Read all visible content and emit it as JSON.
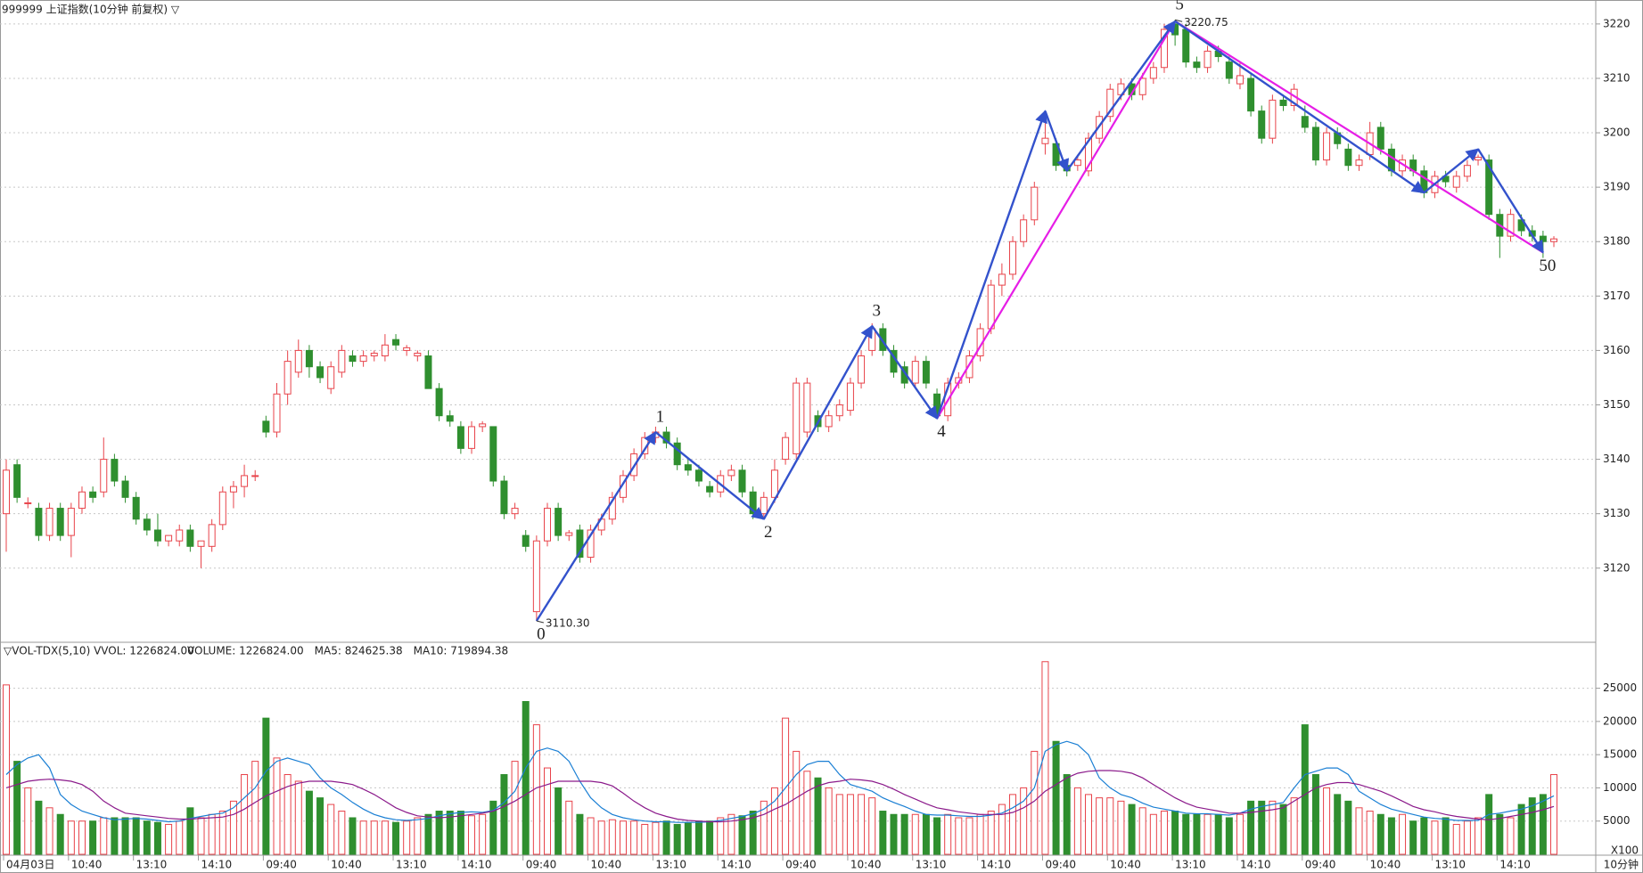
{
  "chart_data": {
    "type": "candlestick",
    "title": "999999 上证指数(10分钟 前复权) ▽",
    "up_color": "#e8434a",
    "down_color": "#2f8f2f",
    "ylim": [
      3106.7,
      3224.4
    ],
    "yticks": [
      3120,
      3130,
      3140,
      3150,
      3160,
      3170,
      3180,
      3190,
      3200,
      3210,
      3220
    ],
    "grid": true,
    "open": [
      3130,
      3139,
      3132,
      3131,
      3126,
      3131,
      3126,
      3131,
      3134,
      3134,
      3140,
      3136,
      3133,
      3129,
      3127,
      3125,
      3125,
      3127,
      3124,
      3124,
      3128,
      3134,
      3135,
      3137,
      3147,
      3145,
      3152,
      3156,
      3160,
      3157,
      3153,
      3156,
      3159,
      3158,
      3159,
      3159,
      3162,
      3160,
      3159,
      3159,
      3153,
      3148,
      3146,
      3142,
      3146,
      3146,
      3136,
      3130,
      3126,
      3112,
      3125,
      3131,
      3126,
      3127,
      3122,
      3127,
      3129,
      3133,
      3137,
      3141,
      3144,
      3145,
      3143,
      3139,
      3138,
      3135,
      3134,
      3137,
      3138,
      3134,
      3130,
      3133,
      3140,
      3141,
      3145,
      3148,
      3146,
      3148,
      3149,
      3154,
      3160,
      3164,
      3160,
      3157,
      3154,
      3158,
      3152,
      3148,
      3154,
      3155,
      3159,
      3164,
      3172,
      3174,
      3180,
      3184,
      3198,
      3198,
      3194,
      3194,
      3193,
      3199,
      3203,
      3207,
      3209,
      3207,
      3210,
      3212,
      3220,
      3219,
      3213,
      3212,
      3215,
      3213,
      3209,
      3210,
      3204,
      3199,
      3206,
      3205,
      3203,
      3201,
      3195,
      3200,
      3197,
      3194,
      3196,
      3201,
      3197,
      3193,
      3195,
      3193,
      3189,
      3192,
      3190,
      3192,
      3195,
      3195,
      3185,
      3181,
      3184,
      3182,
      3181,
      3180
    ],
    "high": [
      3140,
      3140,
      3133,
      3132,
      3132,
      3132,
      3132,
      3135,
      3135,
      3144,
      3141,
      3137,
      3134,
      3130,
      3130,
      3126,
      3128,
      3128,
      3125,
      3129,
      3135,
      3136,
      3139,
      3138,
      3148,
      3154,
      3160,
      3162,
      3161,
      3158,
      3158,
      3161,
      3160,
      3160,
      3160,
      3163,
      3163,
      3161,
      3160,
      3160,
      3154,
      3149,
      3147,
      3147,
      3147,
      3146,
      3137,
      3132,
      3127,
      3126,
      3132,
      3132,
      3127,
      3128,
      3128,
      3130,
      3134,
      3138,
      3142,
      3145,
      3146,
      3146,
      3144,
      3140,
      3139,
      3136,
      3138,
      3139,
      3139,
      3135,
      3134,
      3140,
      3145,
      3155,
      3155,
      3149,
      3149,
      3151,
      3155,
      3160,
      3165,
      3165,
      3161,
      3158,
      3159,
      3159,
      3153,
      3155,
      3156,
      3160,
      3165,
      3173,
      3176,
      3181,
      3185,
      3191,
      3204,
      3199,
      3195,
      3196,
      3200,
      3204,
      3209,
      3210,
      3210,
      3211,
      3213,
      3220,
      3220.75,
      3220,
      3214,
      3216,
      3216,
      3214,
      3213,
      3211,
      3205,
      3207,
      3207,
      3209,
      3205,
      3202,
      3201,
      3201,
      3198,
      3196,
      3202,
      3202,
      3198,
      3196,
      3196,
      3194,
      3193,
      3193,
      3193,
      3195,
      3196,
      3196,
      3186,
      3186,
      3185,
      3183,
      3182,
      3181
    ],
    "low": [
      3123,
      3132,
      3131,
      3125,
      3125,
      3125,
      3122,
      3130,
      3132,
      3133,
      3135,
      3132,
      3128,
      3126,
      3124,
      3124,
      3124,
      3123,
      3120,
      3123,
      3127,
      3131,
      3133,
      3136,
      3144,
      3144,
      3150,
      3155,
      3155,
      3154,
      3152,
      3155,
      3157,
      3157,
      3158,
      3158,
      3160,
      3159,
      3158,
      3153,
      3147,
      3146,
      3141,
      3141,
      3145,
      3135,
      3129,
      3129,
      3123,
      3110.3,
      3124,
      3125,
      3125,
      3121,
      3121,
      3126,
      3128,
      3132,
      3136,
      3140,
      3143,
      3142,
      3138,
      3137,
      3135,
      3133,
      3133,
      3136,
      3133,
      3129,
      3129,
      3132,
      3139,
      3140,
      3144,
      3145,
      3145,
      3147,
      3148,
      3153,
      3159,
      3159,
      3155,
      3153,
      3153,
      3153,
      3147.5,
      3147,
      3153,
      3154,
      3158,
      3163,
      3170,
      3173,
      3179,
      3183,
      3196,
      3193,
      3192,
      3193,
      3192,
      3198,
      3202,
      3206,
      3206,
      3206,
      3209,
      3211,
      3216,
      3212,
      3211,
      3211,
      3213,
      3209,
      3208,
      3203,
      3198,
      3198,
      3204,
      3204,
      3200,
      3194,
      3194,
      3197,
      3193,
      3193,
      3195,
      3196,
      3192,
      3192,
      3192,
      3188,
      3188,
      3190,
      3189,
      3191,
      3194,
      3184,
      3177,
      3180,
      3181,
      3180,
      3177,
      3179
    ],
    "close": [
      3138,
      3133,
      3132,
      3126,
      3131,
      3126,
      3131,
      3134,
      3133,
      3140,
      3136,
      3133,
      3129,
      3127,
      3125,
      3126,
      3127,
      3124,
      3125,
      3128,
      3134,
      3135,
      3137,
      3137,
      3145,
      3152,
      3158,
      3160,
      3157,
      3155,
      3157,
      3160,
      3158,
      3159,
      3159.5,
      3161,
      3161,
      3160.5,
      3159.5,
      3153,
      3148,
      3147,
      3142,
      3146,
      3146.5,
      3136,
      3130,
      3131,
      3124,
      3125,
      3131,
      3126,
      3126.5,
      3122,
      3127,
      3129,
      3133,
      3137,
      3141,
      3144,
      3145,
      3143,
      3139,
      3138,
      3136,
      3134,
      3137,
      3138,
      3134,
      3130,
      3133,
      3138,
      3144,
      3154,
      3154,
      3146,
      3148,
      3150,
      3154,
      3159,
      3164,
      3160,
      3156,
      3154,
      3158,
      3154,
      3148,
      3154,
      3155,
      3159,
      3164,
      3172,
      3174,
      3180,
      3184,
      3190,
      3199,
      3194,
      3193,
      3195,
      3199,
      3203,
      3208,
      3209,
      3207,
      3210,
      3212,
      3219,
      3218,
      3213,
      3212,
      3215,
      3214,
      3210,
      3210.5,
      3204,
      3199,
      3206,
      3205,
      3208,
      3201,
      3195,
      3200,
      3198,
      3194,
      3195,
      3200,
      3197,
      3193,
      3195,
      3193,
      3189,
      3192,
      3191,
      3192,
      3194,
      3195.5,
      3185,
      3181,
      3185,
      3182,
      3181,
      3180,
      3180.5
    ],
    "xlabels": [
      {
        "bar": 0,
        "label": "04月03日"
      },
      {
        "bar": 6,
        "label": "10:40"
      },
      {
        "bar": 12,
        "label": "13:10"
      },
      {
        "bar": 18,
        "label": "14:10"
      },
      {
        "bar": 24,
        "label": "09:40"
      },
      {
        "bar": 30,
        "label": "10:40"
      },
      {
        "bar": 36,
        "label": "13:10"
      },
      {
        "bar": 42,
        "label": "14:10"
      },
      {
        "bar": 48,
        "label": "09:40"
      },
      {
        "bar": 54,
        "label": "10:40"
      },
      {
        "bar": 60,
        "label": "13:10"
      },
      {
        "bar": 66,
        "label": "14:10"
      },
      {
        "bar": 72,
        "label": "09:40"
      },
      {
        "bar": 78,
        "label": "10:40"
      },
      {
        "bar": 84,
        "label": "13:10"
      },
      {
        "bar": 90,
        "label": "14:10"
      },
      {
        "bar": 96,
        "label": "09:40"
      },
      {
        "bar": 102,
        "label": "10:40"
      },
      {
        "bar": 108,
        "label": "13:10"
      },
      {
        "bar": 114,
        "label": "14:10"
      },
      {
        "bar": 120,
        "label": "09:40"
      },
      {
        "bar": 126,
        "label": "10:40"
      },
      {
        "bar": 132,
        "label": "13:10"
      },
      {
        "bar": 138,
        "label": "14:10"
      }
    ],
    "period_label": "10分钟",
    "price_marks": [
      {
        "bar": 49,
        "value": 3110.3,
        "label": "3110.30"
      },
      {
        "bar": 108,
        "value": 3220.75,
        "label": "3220.75"
      }
    ],
    "wave_color": "#3352cc",
    "trend_color": "#e61ee6",
    "wave_path": [
      {
        "bar": 49,
        "price": 3110.3
      },
      {
        "bar": 60,
        "price": 3145
      },
      {
        "bar": 70,
        "price": 3129
      },
      {
        "bar": 80,
        "price": 3164.5
      },
      {
        "bar": 86,
        "price": 3147.5
      },
      {
        "bar": 96,
        "price": 3204
      },
      {
        "bar": 98,
        "price": 3193
      },
      {
        "bar": 108,
        "price": 3220.5
      },
      {
        "bar": 131,
        "price": 3189
      },
      {
        "bar": 136,
        "price": 3197
      },
      {
        "bar": 142,
        "price": 3178
      }
    ],
    "trend_path": [
      {
        "bar": 86,
        "price": 3147.5
      },
      {
        "bar": 108,
        "price": 3220.5
      },
      {
        "bar": 142,
        "price": 3178
      }
    ],
    "wave_labels": [
      {
        "label": "0",
        "bar": 49,
        "price": 3110.3,
        "side": "below"
      },
      {
        "label": "1",
        "bar": 60,
        "price": 3145,
        "side": "above"
      },
      {
        "label": "2",
        "bar": 70,
        "price": 3129,
        "side": "below"
      },
      {
        "label": "3",
        "bar": 80,
        "price": 3164.5,
        "side": "above"
      },
      {
        "label": "4",
        "bar": 86,
        "price": 3147.5,
        "side": "below"
      },
      {
        "label": "5",
        "bar": 108,
        "price": 3220.75,
        "side": "above"
      },
      {
        "label": "50",
        "bar": 142,
        "price": 3178,
        "side": "below"
      }
    ],
    "volume_header": "▽VOL-TDX(5,10) VVOL: 1226824.00",
    "volume_legend": [
      {
        "text": "VOLUME: 1226824.00",
        "color": "#1a7fd4"
      },
      {
        "text": "MA5: 824625.38",
        "color": "#1a7fd4"
      },
      {
        "text": "MA10: 719894.38",
        "color": "#8b1a8b"
      }
    ],
    "volume_unit": "X100",
    "vlim": [
      0,
      31650
    ],
    "vticks": [
      5000,
      10000,
      15000,
      20000,
      25000
    ],
    "volume": [
      25500,
      14000,
      10000,
      8000,
      7000,
      6000,
      5000,
      5000,
      5000,
      5500,
      5500,
      5500,
      5500,
      5000,
      4800,
      4500,
      5000,
      7000,
      5500,
      6000,
      6500,
      8000,
      12000,
      14000,
      20500,
      14500,
      12000,
      11000,
      9500,
      8500,
      7500,
      6500,
      5500,
      5000,
      5000,
      5000,
      4800,
      5000,
      5500,
      6000,
      6500,
      6500,
      6500,
      5800,
      6000,
      8000,
      12000,
      14000,
      23000,
      19500,
      13000,
      10000,
      8000,
      6000,
      5500,
      5000,
      5200,
      5000,
      5000,
      4500,
      4800,
      5000,
      4500,
      4700,
      5000,
      5000,
      5500,
      6000,
      5800,
      6500,
      8000,
      10000,
      20500,
      15500,
      12500,
      11500,
      10000,
      9000,
      9000,
      9000,
      8500,
      6500,
      6000,
      6000,
      6000,
      6000,
      5500,
      6000,
      5500,
      5500,
      6000,
      6500,
      7500,
      9000,
      10000,
      15500,
      29000,
      17000,
      12000,
      10000,
      9000,
      8500,
      8500,
      8000,
      7500,
      7000,
      6000,
      6500,
      6500,
      6000,
      6000,
      6000,
      6000,
      5500,
      6000,
      8000,
      8000,
      8000,
      7500,
      8500,
      19500,
      12000,
      10000,
      9000,
      8000,
      7000,
      6500,
      6000,
      5500,
      6000,
      5000,
      5500,
      5000,
      5500,
      4500,
      5000,
      5500,
      9000,
      6000,
      5500,
      7500,
      8500,
      9000,
      12000
    ],
    "volume_ma5": [
      12000,
      13500,
      14500,
      15000,
      13000,
      9000,
      7500,
      6500,
      6000,
      5500,
      5200,
      5300,
      5400,
      5300,
      5100,
      4900,
      5000,
      5400,
      5700,
      6000,
      6200,
      7000,
      8500,
      10000,
      12500,
      14000,
      14500,
      14000,
      13500,
      11500,
      10000,
      9000,
      7800,
      6800,
      6000,
      5500,
      5200,
      5100,
      5200,
      5400,
      5800,
      6100,
      6300,
      6400,
      6300,
      6600,
      7800,
      9500,
      13000,
      15500,
      16000,
      15500,
      14000,
      11000,
      8500,
      7000,
      6000,
      5500,
      5200,
      5000,
      4900,
      4900,
      4800,
      4800,
      4800,
      4900,
      5100,
      5400,
      5700,
      6100,
      6800,
      8000,
      10000,
      12000,
      13500,
      14000,
      14000,
      12000,
      10500,
      10000,
      9500,
      8500,
      7800,
      7200,
      6500,
      6000,
      5900,
      5900,
      5800,
      5700,
      5700,
      5900,
      6200,
      7000,
      8000,
      10000,
      15500,
      16500,
      17000,
      16500,
      15000,
      11500,
      10000,
      9000,
      8500,
      7700,
      7100,
      6800,
      6500,
      6200,
      6100,
      6100,
      6000,
      5900,
      6200,
      6800,
      7200,
      7500,
      7800,
      10000,
      12000,
      12500,
      13000,
      13000,
      12000,
      9500,
      8500,
      7500,
      6800,
      6400,
      6000,
      5600,
      5400,
      5300,
      5100,
      5100,
      5100,
      6000,
      6200,
      6500,
      6800,
      7300,
      8000,
      8800
    ],
    "volume_ma10": [
      10000,
      10500,
      11000,
      11200,
      11300,
      11200,
      11000,
      10500,
      9500,
      8000,
      7000,
      6200,
      6000,
      5800,
      5600,
      5400,
      5300,
      5300,
      5400,
      5500,
      5600,
      6000,
      6800,
      7800,
      8800,
      9500,
      10200,
      10700,
      11000,
      11000,
      11000,
      10800,
      10500,
      9800,
      9000,
      8000,
      7000,
      6300,
      5800,
      5600,
      5500,
      5600,
      5800,
      6000,
      6200,
      6500,
      7200,
      8000,
      9000,
      10000,
      10500,
      11000,
      11000,
      11000,
      11000,
      10800,
      10300,
      9200,
      8000,
      7000,
      6200,
      5700,
      5300,
      5100,
      5000,
      4900,
      4900,
      5000,
      5200,
      5500,
      6000,
      6800,
      7500,
      8500,
      9500,
      10300,
      10800,
      11000,
      11300,
      11200,
      11000,
      10500,
      9800,
      9000,
      8300,
      7600,
      7000,
      6700,
      6400,
      6200,
      6000,
      6000,
      6000,
      6300,
      7000,
      8000,
      9500,
      10500,
      11500,
      12200,
      12500,
      12600,
      12600,
      12500,
      12200,
      11500,
      10500,
      9500,
      8500,
      7700,
      7100,
      6800,
      6500,
      6200,
      6200,
      6300,
      6500,
      6700,
      7000,
      8000,
      9000,
      10000,
      10500,
      10800,
      10800,
      10500,
      10000,
      9500,
      8800,
      8000,
      7200,
      6700,
      6400,
      6000,
      5700,
      5500,
      5300,
      5200,
      5400,
      5700,
      6000,
      6300,
      6700,
      7200
    ]
  }
}
